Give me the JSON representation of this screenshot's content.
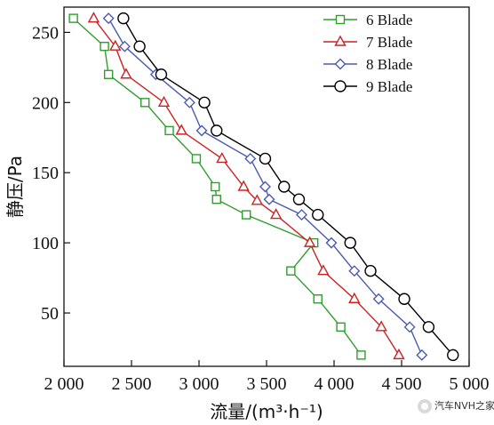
{
  "chart_data": {
    "type": "line",
    "xlabel": "流量/(m³·h⁻¹)",
    "ylabel": "静压/Pa",
    "xlim": [
      2000,
      5000
    ],
    "ylim": [
      12,
      268
    ],
    "xticks": [
      2000,
      2500,
      3000,
      3500,
      4000,
      4500,
      5000
    ],
    "xtick_labels": [
      "2 000",
      "2 500",
      "3 000",
      "3 500",
      "4 000",
      "4 500",
      "5 000"
    ],
    "yticks": [
      50,
      100,
      150,
      200,
      250
    ],
    "ytick_labels": [
      "50",
      "100",
      "150",
      "200",
      "250"
    ],
    "grid": false,
    "legend_position": "top-right",
    "series": [
      {
        "name": "6 Blade",
        "color": "#2e9e2e",
        "marker": "square",
        "x": [
          4200,
          4050,
          3880,
          3680,
          3850,
          3350,
          3130,
          3120,
          2980,
          2780,
          2600,
          2330,
          2300,
          2070
        ],
        "y": [
          20,
          40,
          60,
          80,
          100,
          120,
          131,
          140,
          160,
          180,
          200,
          220,
          240,
          260
        ]
      },
      {
        "name": "7 Blade",
        "color": "#cc2222",
        "marker": "triangle",
        "x": [
          4480,
          4350,
          4150,
          3920,
          3820,
          3570,
          3430,
          3330,
          3170,
          2870,
          2740,
          2460,
          2380,
          2220
        ],
        "y": [
          20,
          40,
          60,
          80,
          100,
          120,
          130,
          140,
          160,
          180,
          200,
          220,
          240,
          260
        ]
      },
      {
        "name": "8 Blade",
        "color": "#4a5ab4",
        "marker": "diamond",
        "x": [
          4650,
          4560,
          4330,
          4150,
          3980,
          3760,
          3520,
          3490,
          3380,
          3020,
          2930,
          2680,
          2450,
          2330
        ],
        "y": [
          20,
          40,
          60,
          80,
          100,
          120,
          131,
          140,
          160,
          180,
          200,
          220,
          240,
          260
        ]
      },
      {
        "name": "9 Blade",
        "color": "#000000",
        "marker": "circle",
        "x": [
          4880,
          4700,
          4520,
          4270,
          4120,
          3880,
          3740,
          3630,
          3490,
          3130,
          3040,
          2720,
          2560,
          2440
        ],
        "y": [
          20,
          40,
          60,
          80,
          100,
          120,
          131,
          140,
          160,
          180,
          200,
          220,
          240,
          260
        ]
      }
    ]
  },
  "watermark": {
    "text": "汽车NVH之家"
  }
}
